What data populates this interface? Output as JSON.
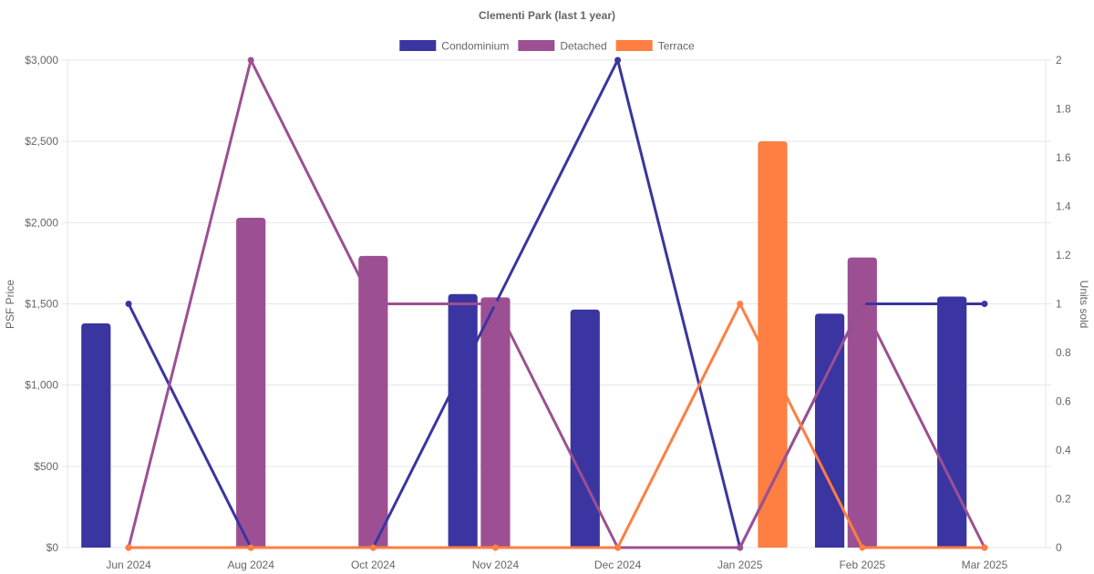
{
  "chart_data": {
    "type": "bar",
    "title": "Clementi Park (last 1 year)",
    "categories": [
      "Jun 2024",
      "Aug 2024",
      "Oct 2024",
      "Nov 2024",
      "Dec 2024",
      "Jan 2025",
      "Feb 2025",
      "Mar 2025"
    ],
    "y_left": {
      "label": "PSF Price",
      "range": [
        0,
        3000
      ],
      "ticks": [
        "$0",
        "$500",
        "$1,000",
        "$1,500",
        "$2,000",
        "$2,500",
        "$3,000"
      ],
      "tick_values": [
        0,
        500,
        1000,
        1500,
        2000,
        2500,
        3000
      ]
    },
    "y_right": {
      "label": "Units sold",
      "range": [
        0,
        2
      ],
      "ticks": [
        "0",
        "0.2",
        "0.4",
        "0.6",
        "0.8",
        "1",
        "1.2",
        "1.4",
        "1.6",
        "1.8",
        "2"
      ],
      "tick_values": [
        0,
        0.2,
        0.4,
        0.6,
        0.8,
        1,
        1.2,
        1.4,
        1.6,
        1.8,
        2
      ]
    },
    "grid": true,
    "legend_position": "top-center",
    "series": [
      {
        "name": "Condominium",
        "color": "#3a35a0",
        "psf": [
          1380,
          null,
          null,
          1560,
          1465,
          null,
          1440,
          1545
        ],
        "units": [
          1,
          0,
          0,
          1,
          2,
          0,
          1,
          1
        ]
      },
      {
        "name": "Detached",
        "color": "#9c5093",
        "psf": [
          null,
          2030,
          1795,
          1540,
          null,
          null,
          1785,
          null
        ],
        "units": [
          0,
          2,
          1,
          1,
          0,
          0,
          1,
          0
        ]
      },
      {
        "name": "Terrace",
        "color": "#ff7e41",
        "psf": [
          null,
          null,
          null,
          null,
          null,
          2500,
          null,
          null
        ],
        "units": [
          0,
          0,
          0,
          0,
          0,
          1,
          0,
          0
        ]
      }
    ]
  }
}
